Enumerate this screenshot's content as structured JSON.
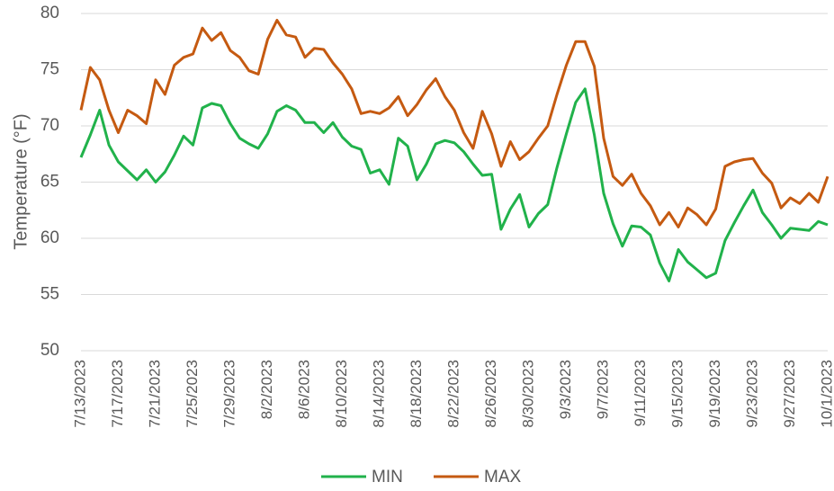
{
  "chart_data": {
    "type": "line",
    "y_label": "Temperature (°F)",
    "categories": [
      "7/13/2023",
      null,
      null,
      null,
      "7/17/2023",
      null,
      null,
      null,
      "7/21/2023",
      null,
      null,
      null,
      "7/25/2023",
      null,
      null,
      null,
      "7/29/2023",
      null,
      null,
      null,
      "8/2/2023",
      null,
      null,
      null,
      "8/6/2023",
      null,
      null,
      null,
      "8/10/2023",
      null,
      null,
      null,
      "8/14/2023",
      null,
      null,
      null,
      "8/18/2023",
      null,
      null,
      null,
      "8/22/2023",
      null,
      null,
      null,
      "8/26/2023",
      null,
      null,
      null,
      "8/30/2023",
      null,
      null,
      null,
      "9/3/2023",
      null,
      null,
      null,
      "9/7/2023",
      null,
      null,
      null,
      "9/11/2023",
      null,
      null,
      null,
      "9/15/2023",
      null,
      null,
      null,
      "9/19/2023",
      null,
      null,
      null,
      "9/23/2023",
      null,
      null,
      null,
      "9/27/2023",
      null,
      null,
      null,
      "10/1/2023"
    ],
    "series": [
      {
        "name": "MIN",
        "color": "#21b24b",
        "values": [
          67.2,
          69.2,
          71.4,
          68.3,
          66.8,
          66.0,
          65.2,
          66.1,
          65.0,
          65.9,
          67.4,
          69.1,
          68.3,
          71.6,
          72.0,
          71.8,
          70.2,
          68.9,
          68.4,
          68.0,
          69.3,
          71.3,
          71.8,
          71.4,
          70.3,
          70.3,
          69.4,
          70.3,
          69.0,
          68.2,
          67.9,
          65.8,
          66.1,
          64.8,
          68.9,
          68.2,
          65.2,
          66.6,
          68.4,
          68.7,
          68.5,
          67.7,
          66.6,
          65.6,
          65.7,
          60.8,
          62.6,
          63.9,
          61.0,
          62.2,
          63.0,
          66.3,
          69.3,
          72.1,
          73.3,
          69.2,
          64.0,
          61.3,
          59.3,
          61.1,
          61.0,
          60.3,
          57.8,
          56.2,
          59.0,
          57.9,
          57.2,
          56.5,
          56.9,
          59.8,
          61.4,
          62.9,
          64.3,
          62.3,
          61.2,
          60.0,
          60.9,
          60.8,
          60.7,
          61.5,
          61.2
        ]
      },
      {
        "name": "MAX",
        "color": "#c55a11",
        "values": [
          71.4,
          75.2,
          74.1,
          71.4,
          69.4,
          71.4,
          70.9,
          70.2,
          74.1,
          72.8,
          75.4,
          76.1,
          76.4,
          78.7,
          77.6,
          78.3,
          76.7,
          76.1,
          74.9,
          74.6,
          77.7,
          79.4,
          78.1,
          77.9,
          76.1,
          76.9,
          76.8,
          75.6,
          74.6,
          73.3,
          71.1,
          71.3,
          71.1,
          71.6,
          72.6,
          70.9,
          71.9,
          73.2,
          74.2,
          72.6,
          71.4,
          69.4,
          68.0,
          71.3,
          69.3,
          66.4,
          68.6,
          67.0,
          67.7,
          68.9,
          70.0,
          72.8,
          75.4,
          77.5,
          77.5,
          75.3,
          68.9,
          65.5,
          64.7,
          65.7,
          64.0,
          62.9,
          61.2,
          62.3,
          61.0,
          62.7,
          62.1,
          61.2,
          62.6,
          66.4,
          66.8,
          67.0,
          67.1,
          65.8,
          64.9,
          62.7,
          63.6,
          63.1,
          64.0,
          63.2,
          65.5
        ]
      }
    ],
    "ylim": [
      50,
      80
    ],
    "yticks": [
      50,
      55,
      60,
      65,
      70,
      75,
      80
    ],
    "grid": true,
    "legend": "bottom"
  }
}
